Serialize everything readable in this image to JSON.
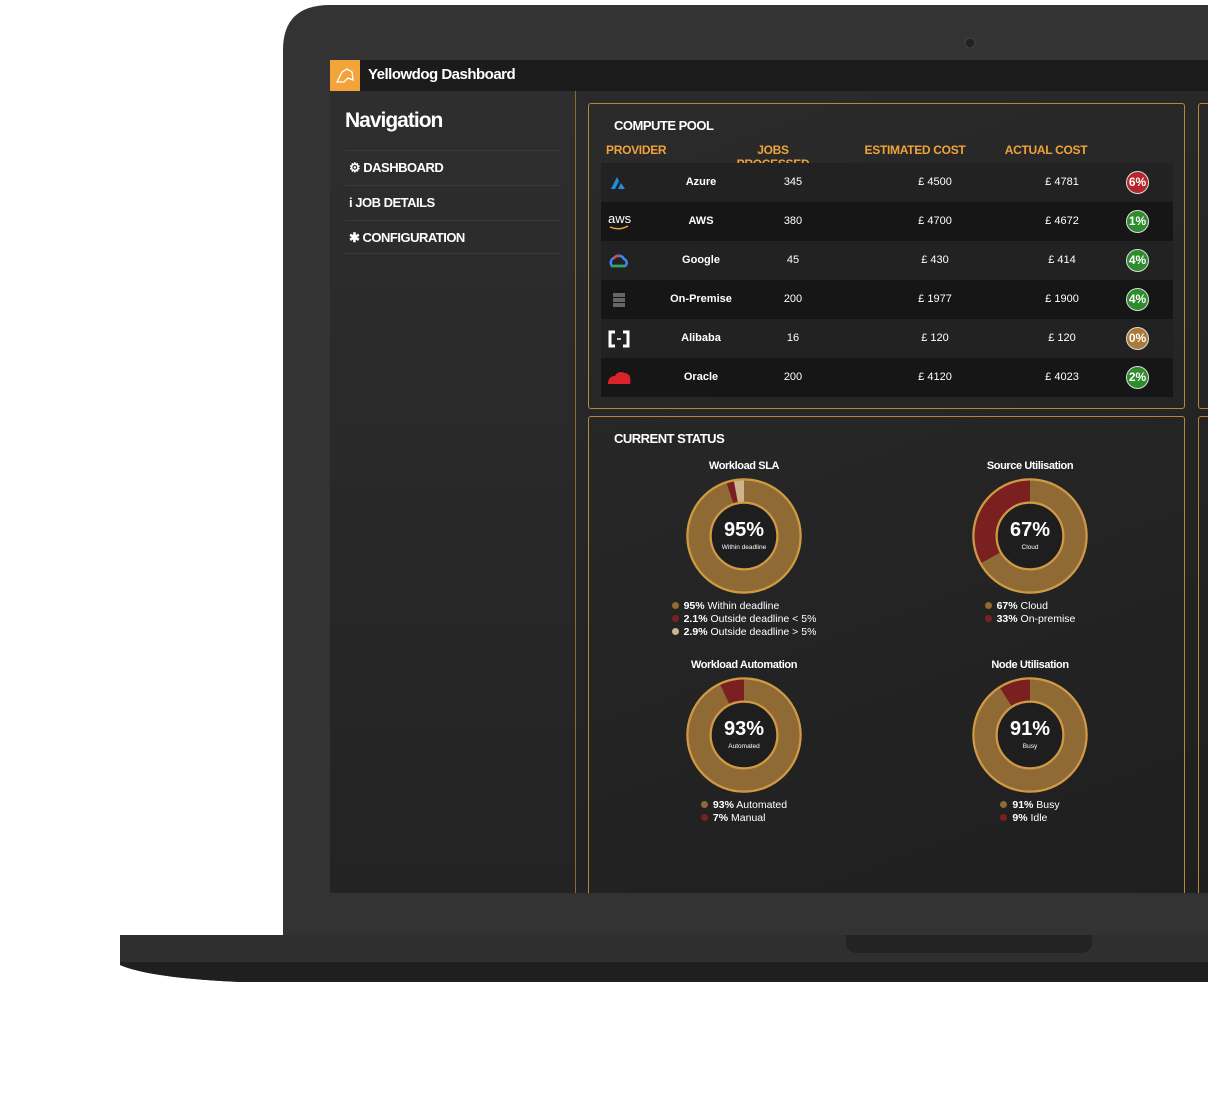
{
  "header": {
    "title": "Yellowdog Dashboard"
  },
  "navigation": {
    "title": "Navigation",
    "items": [
      "DASHBOARD",
      "JOB DETAILS",
      "CONFIGURATION"
    ]
  },
  "compute_pool": {
    "title": "COMPUTE POOL",
    "columns": [
      "PROVIDER",
      "JOBS PROCESSED",
      "ESTIMATED COST",
      "ACTUAL COST"
    ],
    "rows": [
      {
        "provider": "Azure",
        "jobs": "345",
        "estimated": "£ 4500",
        "actual": "£ 4781",
        "difference": "6%",
        "badge_color": "#b3262c"
      },
      {
        "provider": "AWS",
        "jobs": "380",
        "estimated": "£ 4700",
        "actual": "£ 4672",
        "difference": "1%",
        "badge_color": "#2e8b2e"
      },
      {
        "provider": "Google",
        "jobs": "45",
        "estimated": "£ 430",
        "actual": "£ 414",
        "difference": "4%",
        "badge_color": "#2e8b2e"
      },
      {
        "provider": "On-Premise",
        "jobs": "200",
        "estimated": "£ 1977",
        "actual": "£ 1900",
        "difference": "4%",
        "badge_color": "#2e8b2e"
      },
      {
        "provider": "Alibaba",
        "jobs": "16",
        "estimated": "£ 120",
        "actual": "£ 120",
        "difference": "0%",
        "badge_color": "#a97a3a"
      },
      {
        "provider": "Oracle",
        "jobs": "200",
        "estimated": "£ 4120",
        "actual": "£ 4023",
        "difference": "2%",
        "badge_color": "#2e8b2e"
      }
    ]
  },
  "current_status": {
    "title": "CURRENT STATUS",
    "charts": [
      {
        "title": "Workload SLA",
        "segments": [
          {
            "value": 95,
            "value_label": "95%",
            "label": "Within deadline",
            "color": "#8f6a35"
          },
          {
            "value": 2.1,
            "value_label": "2.1%",
            "label": "Outside deadline < 5%",
            "color": "#7a2020"
          },
          {
            "value": 2.9,
            "value_label": "2.9%",
            "label": "Outside deadline > 5%",
            "color": "#cdb48e"
          }
        ]
      },
      {
        "title": "Source Utilisation",
        "segments": [
          {
            "value": 67,
            "value_label": "67%",
            "label": "Cloud",
            "color": "#8f6a35"
          },
          {
            "value": 33,
            "value_label": "33%",
            "label": "On-premise",
            "color": "#7a2020"
          }
        ]
      },
      {
        "title": "Workload Automation",
        "segments": [
          {
            "value": 93,
            "value_label": "93%",
            "label": "Automated",
            "color": "#8f6a35"
          },
          {
            "value": 7,
            "value_label": "7%",
            "label": "Manual",
            "color": "#7a2020"
          }
        ]
      },
      {
        "title": "Node Utilisation",
        "segments": [
          {
            "value": 91,
            "value_label": "91%",
            "label": "Busy",
            "color": "#8f6a35"
          },
          {
            "value": 9,
            "value_label": "9%",
            "label": "Idle",
            "color": "#7a2020"
          }
        ]
      }
    ]
  }
}
